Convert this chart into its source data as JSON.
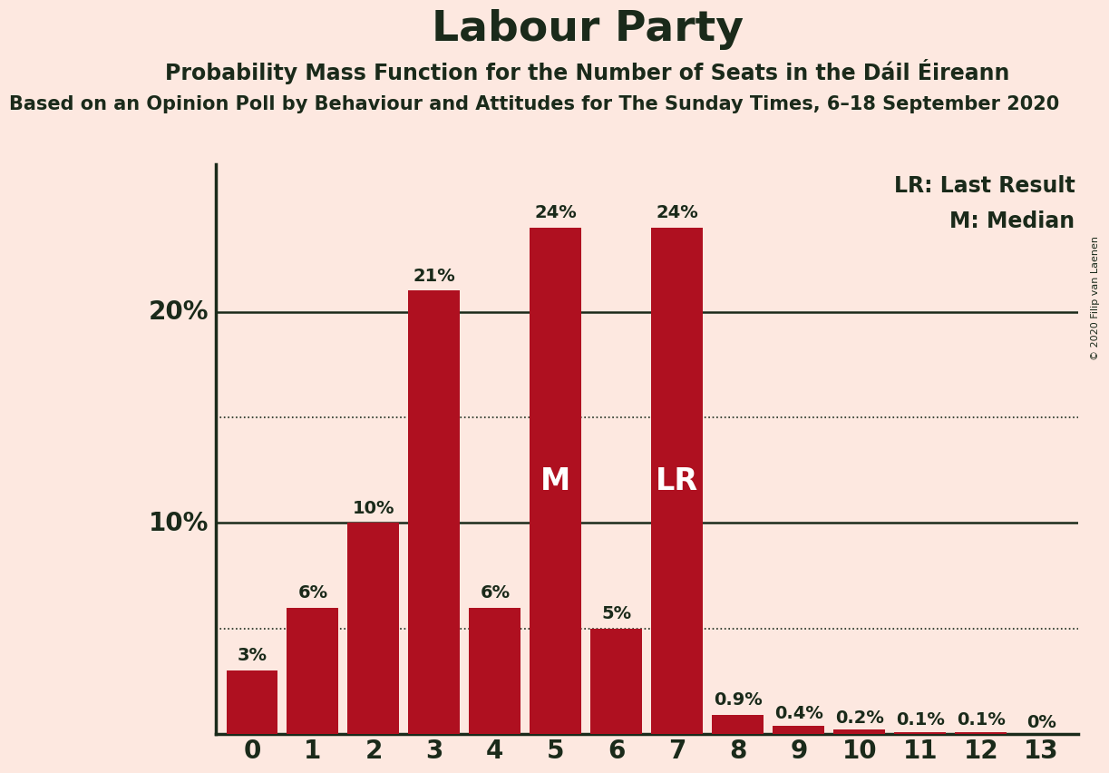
{
  "title": "Labour Party",
  "subtitle": "Probability Mass Function for the Number of Seats in the Dáil Éireann",
  "subtitle2": "Based on an Opinion Poll by Behaviour and Attitudes for The Sunday Times, 6–18 September 2020",
  "copyright": "© 2020 Filip van Laenen",
  "categories": [
    0,
    1,
    2,
    3,
    4,
    5,
    6,
    7,
    8,
    9,
    10,
    11,
    12,
    13
  ],
  "values": [
    3,
    6,
    10,
    21,
    6,
    24,
    5,
    24,
    0.9,
    0.4,
    0.2,
    0.1,
    0.1,
    0
  ],
  "labels": [
    "3%",
    "6%",
    "10%",
    "21%",
    "6%",
    "24%",
    "5%",
    "24%",
    "0.9%",
    "0.4%",
    "0.2%",
    "0.1%",
    "0.1%",
    "0%"
  ],
  "bar_color": "#AF1020",
  "background_color": "#FDE8E0",
  "text_color": "#1a2a1a",
  "median_bar": 5,
  "last_result_bar": 7,
  "median_label": "M",
  "last_result_label": "LR",
  "legend_lr": "LR: Last Result",
  "legend_m": "M: Median",
  "ylim": [
    0,
    27
  ],
  "solid_yticks": [
    10,
    20
  ],
  "dotted_yticks": [
    5,
    15
  ],
  "title_fontsize": 34,
  "subtitle_fontsize": 17,
  "subtitle2_fontsize": 15,
  "bar_label_fontsize": 14,
  "axis_label_fontsize": 20,
  "legend_fontsize": 17,
  "inner_label_fontsize": 24,
  "inner_label_color": "#FFFFFF"
}
